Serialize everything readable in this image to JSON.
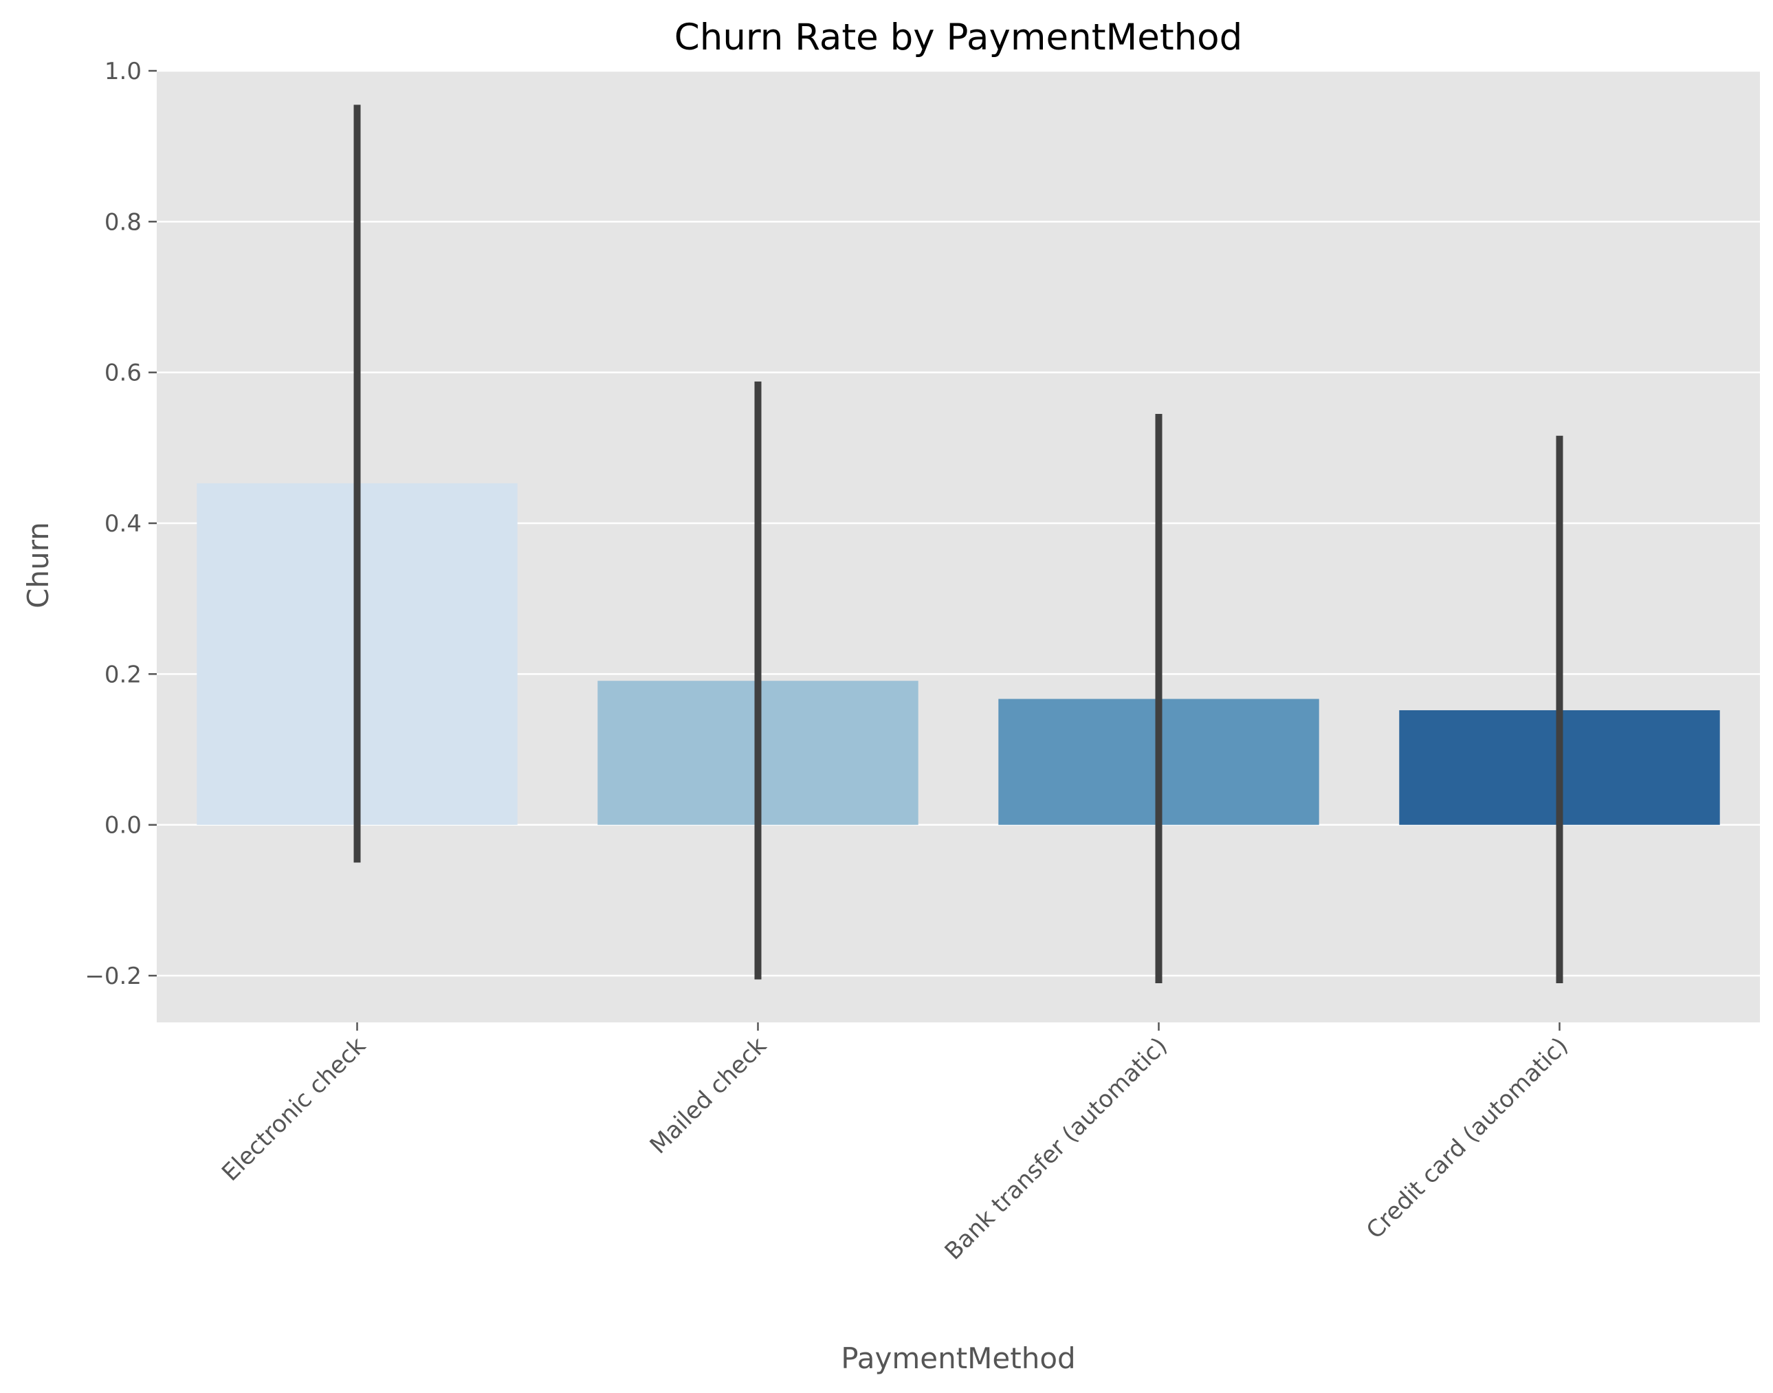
{
  "chart_data": {
    "type": "bar",
    "title": "Churn Rate by PaymentMethod",
    "xlabel": "PaymentMethod",
    "ylabel": "Churn",
    "categories": [
      "Electronic check",
      "Mailed check",
      "Bank transfer (automatic)",
      "Credit card (automatic)"
    ],
    "values": [
      0.453,
      0.191,
      0.167,
      0.152
    ],
    "error_bars": [
      {
        "low": -0.05,
        "high": 0.955
      },
      {
        "low": -0.205,
        "high": 0.588
      },
      {
        "low": -0.21,
        "high": 0.545
      },
      {
        "low": -0.21,
        "high": 0.516
      }
    ],
    "bar_colors": [
      "#d4e2ef",
      "#9dc1d6",
      "#5d95bb",
      "#2a6399"
    ],
    "errorbar_color": "#404040",
    "ylim": [
      -0.262,
      1.0
    ],
    "yticks": [
      -0.2,
      0.0,
      0.2,
      0.4,
      0.6,
      0.8,
      1.0
    ],
    "ytick_labels": [
      "−0.2",
      "0.0",
      "0.2",
      "0.4",
      "0.6",
      "0.8",
      "1.0"
    ],
    "grid": true,
    "background": "#e5e5e5",
    "grid_color": "#ffffff"
  }
}
